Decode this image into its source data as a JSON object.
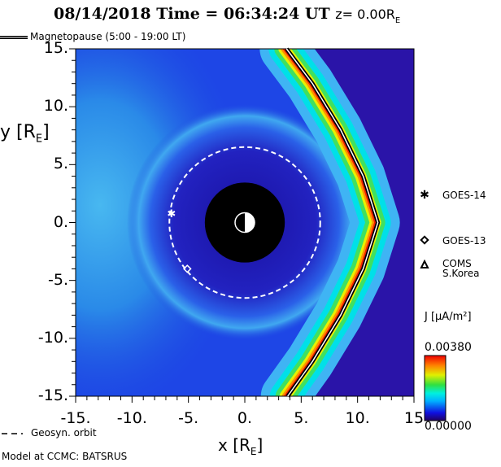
{
  "chart_data": {
    "type": "heatmap",
    "title": {
      "date": "08/14/2018",
      "time_label": "Time = 06:34:24 UT",
      "slice": "z= 0.00R",
      "slice_sub": "E"
    },
    "xlabel": "x [R",
    "xlabel_sub": "E",
    "ylabel": "y [R",
    "ylabel_sub": "E",
    "xlim": [
      -15,
      15
    ],
    "ylim": [
      -15,
      15
    ],
    "xticks": [
      "-15.",
      "-10.",
      "-5.",
      "0.",
      "5.",
      "10.",
      "15"
    ],
    "yticks": [
      "15.",
      "10.",
      "5.",
      "0.",
      "-5.",
      "-10.",
      "-15."
    ],
    "xtick_values": [
      -15,
      -10,
      -5,
      0,
      5,
      10,
      15
    ],
    "ytick_values": [
      15,
      10,
      5,
      0,
      -5,
      -10,
      -15
    ],
    "quantity": "J [µA/m²]",
    "colorbar": {
      "min_label": "0.00000",
      "max_label": "0.00380",
      "min": 0.0,
      "max": 0.0038
    },
    "magnetopause_label": "Magnetopause (5:00 - 19:00 LT)",
    "magnetopause_points": [
      [
        3.7,
        15
      ],
      [
        6,
        12
      ],
      [
        8.5,
        8
      ],
      [
        10.5,
        4
      ],
      [
        11.8,
        0
      ],
      [
        10.5,
        -4
      ],
      [
        8.5,
        -8
      ],
      [
        6,
        -12
      ],
      [
        3.8,
        -15
      ]
    ],
    "geosync_label": "Geosyn. orbit",
    "geosync_radius": 6.6,
    "earth_radius": 3.5,
    "satellites": [
      {
        "name": "GOES-14",
        "marker": "star",
        "x": -6.5,
        "y": 0.8
      },
      {
        "name": "GOES-13",
        "marker": "diamond",
        "x": -5.1,
        "y": -4.0
      },
      {
        "name": "COMS",
        "name2": "S.Korea",
        "marker": "triangle"
      }
    ],
    "credit": "Model at CCMC: BATSRUS"
  }
}
